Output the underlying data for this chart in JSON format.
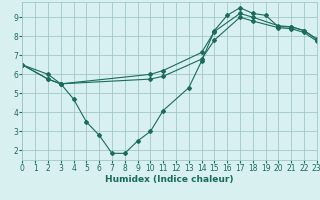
{
  "line1_x": [
    0,
    2,
    3,
    4,
    5,
    6,
    7,
    8,
    9,
    10,
    11,
    13,
    14,
    15,
    16,
    17,
    18,
    19,
    20,
    21,
    22,
    23
  ],
  "line1_y": [
    6.5,
    6.0,
    5.5,
    4.7,
    3.5,
    2.8,
    1.85,
    1.85,
    2.5,
    3.0,
    4.1,
    5.3,
    6.7,
    8.3,
    9.1,
    9.5,
    9.2,
    9.1,
    8.5,
    8.5,
    8.3,
    7.85
  ],
  "line2_x": [
    0,
    2,
    3,
    10,
    11,
    14,
    15,
    17,
    18,
    20,
    21,
    22,
    23
  ],
  "line2_y": [
    6.5,
    5.75,
    5.5,
    6.0,
    6.2,
    7.15,
    8.25,
    9.2,
    9.0,
    8.55,
    8.5,
    8.3,
    7.85
  ],
  "line3_x": [
    0,
    2,
    3,
    10,
    11,
    14,
    15,
    17,
    18,
    20,
    21,
    22,
    23
  ],
  "line3_y": [
    6.5,
    5.75,
    5.5,
    5.75,
    5.9,
    6.8,
    7.8,
    9.0,
    8.8,
    8.45,
    8.4,
    8.2,
    7.75
  ],
  "line_color": "#1a6b5a",
  "bg_color": "#d8f0f0",
  "grid_color": "#a0c8c8",
  "xlabel": "Humidex (Indice chaleur)",
  "xlim": [
    0,
    23
  ],
  "ylim": [
    1.5,
    9.8
  ],
  "xticks": [
    0,
    1,
    2,
    3,
    4,
    5,
    6,
    7,
    8,
    9,
    10,
    11,
    12,
    13,
    14,
    15,
    16,
    17,
    18,
    19,
    20,
    21,
    22,
    23
  ],
  "yticks": [
    2,
    3,
    4,
    5,
    6,
    7,
    8,
    9
  ],
  "tick_fontsize": 5.5,
  "xlabel_fontsize": 6.5
}
